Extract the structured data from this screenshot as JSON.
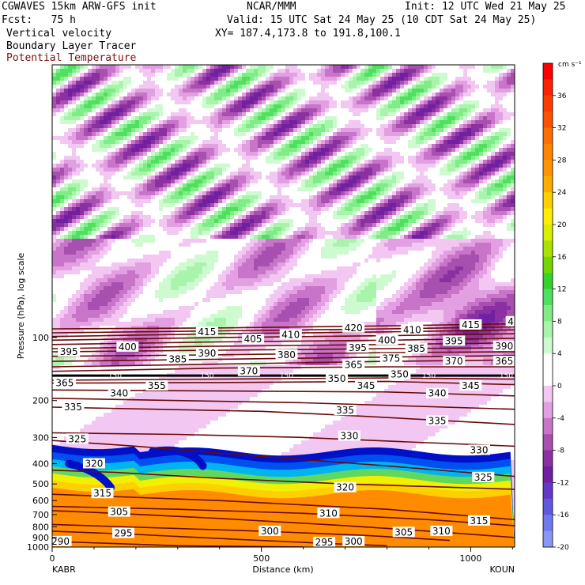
{
  "header": {
    "model": "CGWAVES 15km ARW-GFS init",
    "fcst": "Fcst:   75 h",
    "field1": "Vertical velocity",
    "field2": "Boundary Layer Tracer",
    "field3": "Potential Temperature",
    "org": "NCAR/MMM",
    "init": "Init: 12 UTC Wed 21 May 25",
    "valid": "Valid: 15 UTC Sat 24 May 25 (10 CDT Sat 24 May 25)",
    "xy": "XY= 187.4,173.8 to 191.8,100.1"
  },
  "colors": {
    "theta": "#6a0a0a",
    "field3_text": "#7a1010"
  },
  "chart_data": {
    "type": "heatmap",
    "title": "Vertical velocity",
    "xlabel": "Distance (km)",
    "ylabel": "Pressure (hPa), log scale",
    "x_ticks": [
      0,
      500,
      1000
    ],
    "x_range": [
      0,
      1105
    ],
    "y_ticks": [
      100,
      200,
      300,
      400,
      500,
      600,
      700,
      800,
      900,
      1000
    ],
    "y_range": [
      1000,
      5
    ],
    "y_scale": "log",
    "endpoints": {
      "left": "KABR",
      "right": "KOUN"
    },
    "colorbar": {
      "unit": "cm s⁻¹",
      "ticks": [
        36,
        32,
        28,
        24,
        20,
        16,
        12,
        8,
        4,
        0,
        -4,
        -8,
        -12,
        -16,
        -20
      ],
      "bins": [
        {
          "lo": 38,
          "color": "#ff0000"
        },
        {
          "lo": 36,
          "color": "#ff2000"
        },
        {
          "lo": 34,
          "color": "#ff3c00"
        },
        {
          "lo": 32,
          "color": "#ff5200"
        },
        {
          "lo": 30,
          "color": "#ff6e00"
        },
        {
          "lo": 28,
          "color": "#ff8400"
        },
        {
          "lo": 26,
          "color": "#ff9400"
        },
        {
          "lo": 24,
          "color": "#ffac00"
        },
        {
          "lo": 22,
          "color": "#ffd000"
        },
        {
          "lo": 20,
          "color": "#ffee00"
        },
        {
          "lo": 18,
          "color": "#d8f000"
        },
        {
          "lo": 16,
          "color": "#a8e400"
        },
        {
          "lo": 14,
          "color": "#70d800"
        },
        {
          "lo": 12,
          "color": "#34d22a"
        },
        {
          "lo": 10,
          "color": "#50e060"
        },
        {
          "lo": 8,
          "color": "#80ec88"
        },
        {
          "lo": 6,
          "color": "#a8f4aa"
        },
        {
          "lo": 4,
          "color": "#cefad0"
        },
        {
          "lo": 2,
          "color": "#ffffff"
        },
        {
          "lo": 0,
          "color": "#ffffff"
        },
        {
          "lo": -2,
          "color": "#f2c8f2"
        },
        {
          "lo": -4,
          "color": "#e2a0e2"
        },
        {
          "lo": -6,
          "color": "#c874c8"
        },
        {
          "lo": -8,
          "color": "#a850b0"
        },
        {
          "lo": -10,
          "color": "#8a30a0"
        },
        {
          "lo": -12,
          "color": "#7020a0"
        },
        {
          "lo": -14,
          "color": "#6438c8"
        },
        {
          "lo": -16,
          "color": "#6058e0"
        },
        {
          "lo": -18,
          "color": "#7078f0"
        },
        {
          "lo": -20,
          "color": "#8898f8"
        }
      ]
    },
    "tracer_colors": [
      "#ff8c00",
      "#ffd000",
      "#f0f000",
      "#60d860",
      "#00b4f0",
      "#0050f0",
      "#0010c8"
    ],
    "isentropes": [
      {
        "theta": 290,
        "points": [
          [
            0,
            940
          ],
          [
            300,
            985
          ],
          [
            600,
            1000
          ]
        ],
        "labels": [
          [
            20,
            940
          ]
        ]
      },
      {
        "theta": 295,
        "points": [
          [
            0,
            840
          ],
          [
            200,
            870
          ],
          [
            450,
            920
          ],
          [
            650,
            960
          ],
          [
            800,
            985
          ]
        ],
        "labels": [
          [
            170,
            860
          ],
          [
            650,
            950
          ]
        ]
      },
      {
        "theta": 300,
        "points": [
          [
            0,
            780
          ],
          [
            250,
            810
          ],
          [
            500,
            840
          ],
          [
            750,
            880
          ],
          [
            950,
            930
          ]
        ],
        "labels": [
          [
            520,
            840
          ],
          [
            720,
            940
          ]
        ]
      },
      {
        "theta": 305,
        "points": [
          [
            0,
            670
          ],
          [
            150,
            690
          ],
          [
            400,
            730
          ],
          [
            700,
            790
          ],
          [
            900,
            840
          ],
          [
            1105,
            900
          ]
        ],
        "labels": [
          [
            160,
            680
          ],
          [
            840,
            850
          ]
        ]
      },
      {
        "theta": 310,
        "points": [
          [
            0,
            640
          ],
          [
            300,
            660
          ],
          [
            600,
            690
          ],
          [
            900,
            740
          ],
          [
            1105,
            790
          ]
        ],
        "labels": [
          [
            660,
            690
          ],
          [
            930,
            840
          ]
        ]
      },
      {
        "theta": 315,
        "points": [
          [
            0,
            560
          ],
          [
            400,
            600
          ],
          [
            800,
            660
          ],
          [
            1105,
            740
          ]
        ],
        "labels": [
          [
            120,
            555
          ],
          [
            1020,
            750
          ]
        ]
      },
      {
        "theta": 320,
        "points": [
          [
            0,
            430
          ],
          [
            150,
            440
          ],
          [
            400,
            470
          ],
          [
            700,
            500
          ],
          [
            1105,
            530
          ]
        ],
        "labels": [
          [
            100,
            400
          ],
          [
            700,
            520
          ]
        ]
      },
      {
        "theta": 325,
        "points": [
          [
            0,
            310
          ],
          [
            200,
            330
          ],
          [
            500,
            370
          ],
          [
            800,
            410
          ],
          [
            1105,
            460
          ]
        ],
        "labels": [
          [
            60,
            305
          ],
          [
            1030,
            465
          ]
        ]
      },
      {
        "theta": 330,
        "points": [
          [
            0,
            285
          ],
          [
            300,
            290
          ],
          [
            600,
            300
          ],
          [
            850,
            315
          ],
          [
            1105,
            330
          ]
        ],
        "labels": [
          [
            710,
            295
          ],
          [
            1020,
            345
          ]
        ]
      },
      {
        "theta": 335,
        "points": [
          [
            0,
            215
          ],
          [
            250,
            220
          ],
          [
            500,
            225
          ],
          [
            700,
            235
          ],
          [
            1105,
            260
          ]
        ],
        "labels": [
          [
            50,
            215
          ],
          [
            700,
            223
          ],
          [
            920,
            250
          ]
        ]
      },
      {
        "theta": 340,
        "points": [
          [
            0,
            195
          ],
          [
            300,
            200
          ],
          [
            600,
            205
          ],
          [
            1105,
            220
          ]
        ],
        "labels": [
          [
            160,
            185
          ],
          [
            920,
            185
          ]
        ]
      },
      {
        "theta": 345,
        "points": [
          [
            0,
            178
          ],
          [
            400,
            180
          ],
          [
            800,
            182
          ],
          [
            1105,
            190
          ]
        ],
        "labels": [
          [
            750,
            170
          ],
          [
            1000,
            170
          ]
        ]
      },
      {
        "theta": 350,
        "points": [
          [
            0,
            165
          ],
          [
            400,
            164
          ],
          [
            800,
            162
          ],
          [
            1105,
            168
          ]
        ],
        "labels": [
          [
            680,
            157
          ],
          [
            830,
            150
          ]
        ]
      },
      {
        "theta": 355,
        "points": [
          [
            0,
            160
          ],
          [
            400,
            158
          ],
          [
            800,
            156
          ],
          [
            1105,
            158
          ]
        ],
        "labels": [
          [
            250,
            170
          ]
        ]
      },
      {
        "theta": 365,
        "points": [
          [
            0,
            152
          ],
          [
            400,
            152
          ],
          [
            800,
            152
          ],
          [
            1105,
            152
          ]
        ],
        "labels": [
          [
            30,
            165
          ],
          [
            720,
            135
          ],
          [
            1080,
            130
          ]
        ]
      },
      {
        "theta": 370,
        "points": [
          [
            0,
            145
          ],
          [
            400,
            140
          ],
          [
            800,
            138
          ],
          [
            1105,
            138
          ]
        ],
        "labels": [
          [
            470,
            145
          ],
          [
            960,
            130
          ]
        ]
      },
      {
        "theta": 375,
        "points": [
          [
            0,
            138
          ],
          [
            400,
            134
          ],
          [
            800,
            130
          ],
          [
            1105,
            128
          ]
        ],
        "labels": [
          [
            810,
            126
          ]
        ]
      },
      {
        "theta": 380,
        "points": [
          [
            0,
            130
          ],
          [
            400,
            127
          ],
          [
            800,
            124
          ],
          [
            1105,
            122
          ]
        ],
        "labels": [
          [
            560,
            121
          ]
        ]
      },
      {
        "theta": 385,
        "points": [
          [
            0,
            123
          ],
          [
            400,
            121
          ],
          [
            800,
            118
          ],
          [
            1105,
            117
          ]
        ],
        "labels": [
          [
            300,
            127
          ],
          [
            870,
            113
          ]
        ]
      },
      {
        "theta": 390,
        "points": [
          [
            0,
            117
          ],
          [
            400,
            115
          ],
          [
            800,
            113
          ],
          [
            1105,
            112
          ]
        ],
        "labels": [
          [
            370,
            119
          ],
          [
            1080,
            110
          ]
        ]
      },
      {
        "theta": 395,
        "points": [
          [
            0,
            113
          ],
          [
            400,
            110
          ],
          [
            800,
            108
          ],
          [
            1105,
            106
          ]
        ],
        "labels": [
          [
            40,
            117
          ],
          [
            730,
            112
          ],
          [
            960,
            104
          ]
        ]
      },
      {
        "theta": 400,
        "points": [
          [
            0,
            108
          ],
          [
            400,
            105
          ],
          [
            800,
            103
          ],
          [
            1105,
            101
          ]
        ],
        "labels": [
          [
            180,
            111
          ],
          [
            800,
            103
          ]
        ]
      },
      {
        "theta": 405,
        "points": [
          [
            0,
            103
          ],
          [
            400,
            100
          ],
          [
            800,
            98
          ],
          [
            1105,
            96
          ]
        ],
        "labels": [
          [
            480,
            102
          ]
        ]
      },
      {
        "theta": 410,
        "points": [
          [
            0,
            99
          ],
          [
            400,
            96
          ],
          [
            800,
            94
          ],
          [
            1105,
            92
          ]
        ],
        "labels": [
          [
            570,
            97
          ],
          [
            860,
            92
          ]
        ]
      },
      {
        "theta": 415,
        "points": [
          [
            0,
            95
          ],
          [
            400,
            93
          ],
          [
            800,
            91
          ],
          [
            1105,
            89
          ]
        ],
        "labels": [
          [
            370,
            94
          ],
          [
            1000,
            87
          ]
        ]
      },
      {
        "theta": 420,
        "points": [
          [
            0,
            91
          ],
          [
            400,
            90
          ],
          [
            800,
            88
          ],
          [
            1105,
            86
          ]
        ],
        "labels": [
          [
            720,
            90
          ],
          [
            1110,
            84
          ]
        ]
      }
    ],
    "tropopause_labels": [
      [
        150,
        150
      ],
      [
        370,
        150
      ],
      [
        560,
        150
      ],
      [
        900,
        150
      ],
      [
        1085,
        150
      ]
    ]
  }
}
